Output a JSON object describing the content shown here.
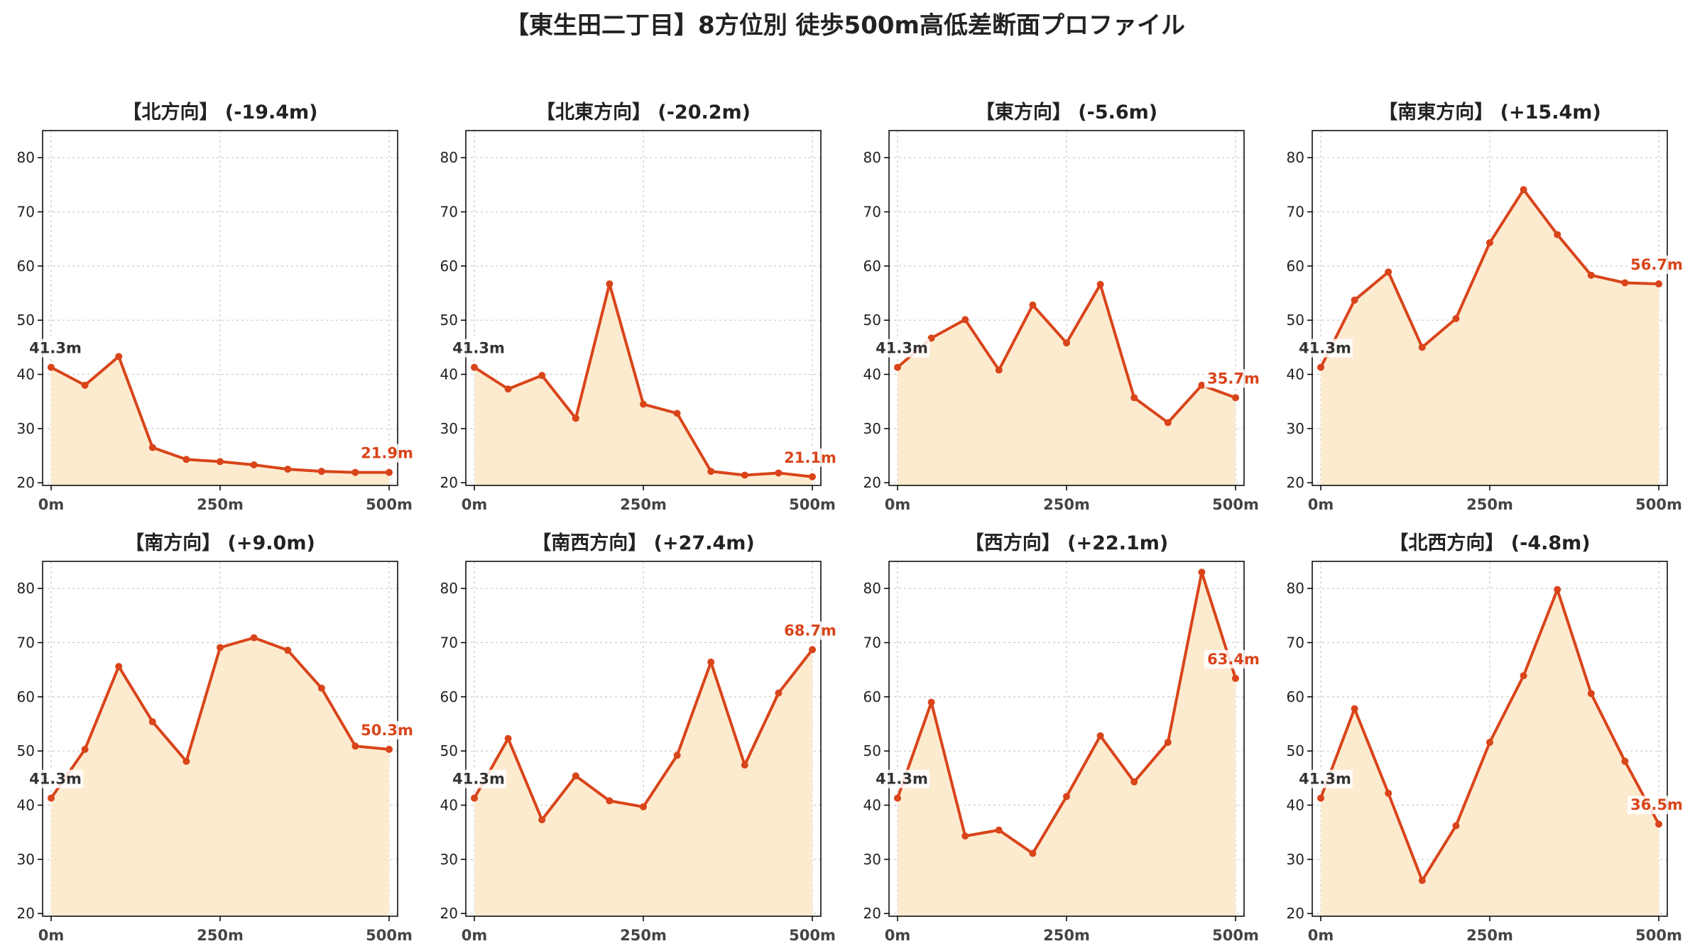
{
  "title": "【東生田二丁目】8方位別 徒歩500m高低差断面プロファイル",
  "colors": {
    "line": "#d9441a",
    "fill": "#fdebd0",
    "start_label": "#333333",
    "grid": "#c8c8c8"
  },
  "chart_data": [
    {
      "type": "area",
      "title": "【北方向】 (-19.4m)",
      "x": [
        0,
        50,
        100,
        150,
        200,
        250,
        300,
        350,
        400,
        450,
        500
      ],
      "xticks": [
        "0m",
        "250m",
        "500m"
      ],
      "xtick_values": [
        0,
        250,
        500
      ],
      "yticks": [
        20,
        30,
        40,
        50,
        60,
        70,
        80
      ],
      "ylim": [
        19.5,
        85
      ],
      "series": [
        {
          "values": [
            41.3,
            38.0,
            43.3,
            26.5,
            24.3,
            23.9,
            23.3,
            22.5,
            22.1,
            21.9,
            21.9
          ]
        }
      ],
      "start_label": "41.3m",
      "end_label": "21.9m"
    },
    {
      "type": "area",
      "title": "【北東方向】 (-20.2m)",
      "x": [
        0,
        50,
        100,
        150,
        200,
        250,
        300,
        350,
        400,
        450,
        500
      ],
      "xticks": [
        "0m",
        "250m",
        "500m"
      ],
      "xtick_values": [
        0,
        250,
        500
      ],
      "yticks": [
        20,
        30,
        40,
        50,
        60,
        70,
        80
      ],
      "ylim": [
        19.5,
        85
      ],
      "series": [
        {
          "values": [
            41.3,
            37.3,
            39.8,
            31.9,
            56.7,
            34.5,
            32.8,
            22.1,
            21.4,
            21.8,
            21.1
          ]
        }
      ],
      "start_label": "41.3m",
      "end_label": "21.1m"
    },
    {
      "type": "area",
      "title": "【東方向】 (-5.6m)",
      "x": [
        0,
        50,
        100,
        150,
        200,
        250,
        300,
        350,
        400,
        450,
        500
      ],
      "xticks": [
        "0m",
        "250m",
        "500m"
      ],
      "xtick_values": [
        0,
        250,
        500
      ],
      "yticks": [
        20,
        30,
        40,
        50,
        60,
        70,
        80
      ],
      "ylim": [
        19.5,
        85
      ],
      "series": [
        {
          "values": [
            41.3,
            46.7,
            50.1,
            40.8,
            52.8,
            45.8,
            56.6,
            35.7,
            31.1,
            38.0,
            35.7
          ]
        }
      ],
      "start_label": "41.3m",
      "end_label": "35.7m"
    },
    {
      "type": "area",
      "title": "【南東方向】 (+15.4m)",
      "x": [
        0,
        50,
        100,
        150,
        200,
        250,
        300,
        350,
        400,
        450,
        500
      ],
      "xticks": [
        "0m",
        "250m",
        "500m"
      ],
      "xtick_values": [
        0,
        250,
        500
      ],
      "yticks": [
        20,
        30,
        40,
        50,
        60,
        70,
        80
      ],
      "ylim": [
        19.5,
        85
      ],
      "series": [
        {
          "values": [
            41.3,
            53.7,
            58.9,
            45.0,
            50.3,
            64.3,
            74.1,
            65.8,
            58.3,
            56.9,
            56.7
          ]
        }
      ],
      "start_label": "41.3m",
      "end_label": "56.7m"
    },
    {
      "type": "area",
      "title": "【南方向】 (+9.0m)",
      "x": [
        0,
        50,
        100,
        150,
        200,
        250,
        300,
        350,
        400,
        450,
        500
      ],
      "xticks": [
        "0m",
        "250m",
        "500m"
      ],
      "xtick_values": [
        0,
        250,
        500
      ],
      "yticks": [
        20,
        30,
        40,
        50,
        60,
        70,
        80
      ],
      "ylim": [
        19.5,
        85
      ],
      "series": [
        {
          "values": [
            41.3,
            50.3,
            65.6,
            55.4,
            48.1,
            69.1,
            70.9,
            68.6,
            61.6,
            50.9,
            50.3
          ]
        }
      ],
      "start_label": "41.3m",
      "end_label": "50.3m"
    },
    {
      "type": "area",
      "title": "【南西方向】 (+27.4m)",
      "x": [
        0,
        50,
        100,
        150,
        200,
        250,
        300,
        350,
        400,
        450,
        500
      ],
      "xticks": [
        "0m",
        "250m",
        "500m"
      ],
      "xtick_values": [
        0,
        250,
        500
      ],
      "yticks": [
        20,
        30,
        40,
        50,
        60,
        70,
        80
      ],
      "ylim": [
        19.5,
        85
      ],
      "series": [
        {
          "values": [
            41.3,
            52.3,
            37.3,
            45.4,
            40.8,
            39.7,
            49.2,
            66.4,
            47.4,
            60.7,
            68.7
          ]
        }
      ],
      "start_label": "41.3m",
      "end_label": "68.7m"
    },
    {
      "type": "area",
      "title": "【西方向】 (+22.1m)",
      "x": [
        0,
        50,
        100,
        150,
        200,
        250,
        300,
        350,
        400,
        450,
        500
      ],
      "xticks": [
        "0m",
        "250m",
        "500m"
      ],
      "xtick_values": [
        0,
        250,
        500
      ],
      "yticks": [
        20,
        30,
        40,
        50,
        60,
        70,
        80
      ],
      "ylim": [
        19.5,
        85
      ],
      "series": [
        {
          "values": [
            41.3,
            59.0,
            34.3,
            35.4,
            31.1,
            41.6,
            52.8,
            44.3,
            51.6,
            83.0,
            63.4
          ]
        }
      ],
      "start_label": "41.3m",
      "end_label": "63.4m"
    },
    {
      "type": "area",
      "title": "【北西方向】 (-4.8m)",
      "x": [
        0,
        50,
        100,
        150,
        200,
        250,
        300,
        350,
        400,
        450,
        500
      ],
      "xticks": [
        "0m",
        "250m",
        "500m"
      ],
      "xtick_values": [
        0,
        250,
        500
      ],
      "yticks": [
        20,
        30,
        40,
        50,
        60,
        70,
        80
      ],
      "ylim": [
        19.5,
        85
      ],
      "series": [
        {
          "values": [
            41.3,
            57.8,
            42.2,
            26.1,
            36.2,
            51.6,
            63.9,
            79.8,
            60.6,
            48.1,
            36.5
          ]
        }
      ],
      "start_label": "41.3m",
      "end_label": "36.5m"
    }
  ]
}
